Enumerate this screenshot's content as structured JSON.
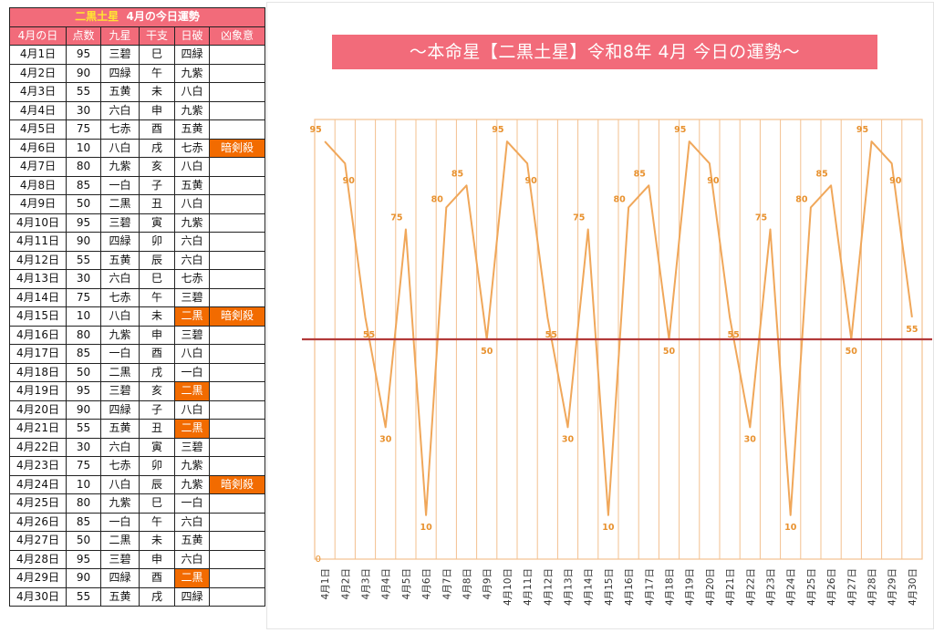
{
  "table": {
    "title_star": "二黒土星",
    "title_rest": "4月の今日運勢",
    "headers": [
      "4月の日",
      "点数",
      "九星",
      "干支",
      "日破",
      "凶象意"
    ],
    "rows": [
      {
        "date": "4月1日",
        "score": "95",
        "star": "三碧",
        "eto": "巳",
        "nippa": "四緑",
        "kyo": "",
        "nippa_mark": false
      },
      {
        "date": "4月2日",
        "score": "90",
        "star": "四緑",
        "eto": "午",
        "nippa": "九紫",
        "kyo": "",
        "nippa_mark": false
      },
      {
        "date": "4月3日",
        "score": "55",
        "star": "五黄",
        "eto": "未",
        "nippa": "八白",
        "kyo": "",
        "nippa_mark": false
      },
      {
        "date": "4月4日",
        "score": "30",
        "star": "六白",
        "eto": "申",
        "nippa": "九紫",
        "kyo": "",
        "nippa_mark": false
      },
      {
        "date": "4月5日",
        "score": "75",
        "star": "七赤",
        "eto": "酉",
        "nippa": "五黄",
        "kyo": "",
        "nippa_mark": false
      },
      {
        "date": "4月6日",
        "score": "10",
        "star": "八白",
        "eto": "戌",
        "nippa": "七赤",
        "kyo": "暗剣殺",
        "nippa_mark": false
      },
      {
        "date": "4月7日",
        "score": "80",
        "star": "九紫",
        "eto": "亥",
        "nippa": "八白",
        "kyo": "",
        "nippa_mark": false
      },
      {
        "date": "4月8日",
        "score": "85",
        "star": "一白",
        "eto": "子",
        "nippa": "五黄",
        "kyo": "",
        "nippa_mark": false
      },
      {
        "date": "4月9日",
        "score": "50",
        "star": "二黒",
        "eto": "丑",
        "nippa": "八白",
        "kyo": "",
        "nippa_mark": false
      },
      {
        "date": "4月10日",
        "score": "95",
        "star": "三碧",
        "eto": "寅",
        "nippa": "九紫",
        "kyo": "",
        "nippa_mark": false
      },
      {
        "date": "4月11日",
        "score": "90",
        "star": "四緑",
        "eto": "卯",
        "nippa": "六白",
        "kyo": "",
        "nippa_mark": false
      },
      {
        "date": "4月12日",
        "score": "55",
        "star": "五黄",
        "eto": "辰",
        "nippa": "六白",
        "kyo": "",
        "nippa_mark": false
      },
      {
        "date": "4月13日",
        "score": "30",
        "star": "六白",
        "eto": "巳",
        "nippa": "七赤",
        "kyo": "",
        "nippa_mark": false
      },
      {
        "date": "4月14日",
        "score": "75",
        "star": "七赤",
        "eto": "午",
        "nippa": "三碧",
        "kyo": "",
        "nippa_mark": false
      },
      {
        "date": "4月15日",
        "score": "10",
        "star": "八白",
        "eto": "未",
        "nippa": "二黒",
        "kyo": "暗剣殺",
        "nippa_mark": true
      },
      {
        "date": "4月16日",
        "score": "80",
        "star": "九紫",
        "eto": "申",
        "nippa": "三碧",
        "kyo": "",
        "nippa_mark": false
      },
      {
        "date": "4月17日",
        "score": "85",
        "star": "一白",
        "eto": "酉",
        "nippa": "八白",
        "kyo": "",
        "nippa_mark": false
      },
      {
        "date": "4月18日",
        "score": "50",
        "star": "二黒",
        "eto": "戌",
        "nippa": "一白",
        "kyo": "",
        "nippa_mark": false
      },
      {
        "date": "4月19日",
        "score": "95",
        "star": "三碧",
        "eto": "亥",
        "nippa": "二黒",
        "kyo": "",
        "nippa_mark": true
      },
      {
        "date": "4月20日",
        "score": "90",
        "star": "四緑",
        "eto": "子",
        "nippa": "八白",
        "kyo": "",
        "nippa_mark": false
      },
      {
        "date": "4月21日",
        "score": "55",
        "star": "五黄",
        "eto": "丑",
        "nippa": "二黒",
        "kyo": "",
        "nippa_mark": true
      },
      {
        "date": "4月22日",
        "score": "30",
        "star": "六白",
        "eto": "寅",
        "nippa": "三碧",
        "kyo": "",
        "nippa_mark": false
      },
      {
        "date": "4月23日",
        "score": "75",
        "star": "七赤",
        "eto": "卯",
        "nippa": "九紫",
        "kyo": "",
        "nippa_mark": false
      },
      {
        "date": "4月24日",
        "score": "10",
        "star": "八白",
        "eto": "辰",
        "nippa": "九紫",
        "kyo": "暗剣殺",
        "nippa_mark": false
      },
      {
        "date": "4月25日",
        "score": "80",
        "star": "九紫",
        "eto": "巳",
        "nippa": "一白",
        "kyo": "",
        "nippa_mark": false
      },
      {
        "date": "4月26日",
        "score": "85",
        "star": "一白",
        "eto": "午",
        "nippa": "六白",
        "kyo": "",
        "nippa_mark": false
      },
      {
        "date": "4月27日",
        "score": "50",
        "star": "二黒",
        "eto": "未",
        "nippa": "五黄",
        "kyo": "",
        "nippa_mark": false
      },
      {
        "date": "4月28日",
        "score": "95",
        "star": "三碧",
        "eto": "申",
        "nippa": "六白",
        "kyo": "",
        "nippa_mark": false
      },
      {
        "date": "4月29日",
        "score": "90",
        "star": "四緑",
        "eto": "酉",
        "nippa": "二黒",
        "kyo": "",
        "nippa_mark": true
      },
      {
        "date": "4月30日",
        "score": "55",
        "star": "五黄",
        "eto": "戌",
        "nippa": "四緑",
        "kyo": "",
        "nippa_mark": false
      }
    ]
  },
  "colors": {
    "header_pink": "#f26b7a",
    "title_yellow": "#ffe433",
    "highlight_orange": "#f26b00",
    "line_orange": "#f0a75a",
    "label_orange": "#e8912e",
    "grid_orange": "#f3c08f",
    "reference_red": "#b23a3a"
  },
  "chart_data": {
    "type": "line",
    "title": "～本命星【二黒土星】令和8年 4月 今日の運勢～",
    "categories": [
      "4月1日",
      "4月2日",
      "4月3日",
      "4月4日",
      "4月5日",
      "4月6日",
      "4月7日",
      "4月8日",
      "4月9日",
      "4月10日",
      "4月11日",
      "4月12日",
      "4月13日",
      "4月14日",
      "4月15日",
      "4月16日",
      "4月17日",
      "4月18日",
      "4月19日",
      "4月20日",
      "4月21日",
      "4月22日",
      "4月23日",
      "4月24日",
      "4月25日",
      "4月26日",
      "4月27日",
      "4月28日",
      "4月29日",
      "4月30日"
    ],
    "values": [
      95,
      90,
      55,
      30,
      75,
      10,
      80,
      85,
      50,
      95,
      90,
      55,
      30,
      75,
      10,
      80,
      85,
      50,
      95,
      90,
      55,
      30,
      75,
      10,
      80,
      85,
      50,
      95,
      90,
      55
    ],
    "axis_zero_label": "0",
    "ylim": [
      0,
      100
    ],
    "reference_line": 50,
    "vertical_gridlines": true,
    "legend": "none",
    "data_labels": true
  }
}
